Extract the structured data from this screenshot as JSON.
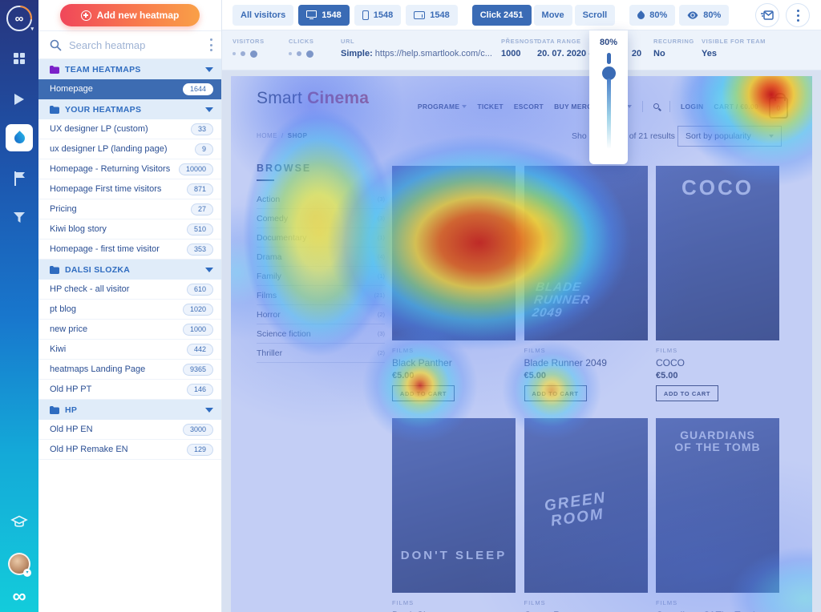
{
  "colors": {
    "accent_blue": "#3a6bb5",
    "selected_row_blue": "#3d6cb2",
    "add_button_gradient": [
      "#f0475a",
      "#f9a047"
    ],
    "rail_gradient": [
      "#27357e",
      "#1877cd",
      "#13ccdb"
    ],
    "site_accent_red": "#c4373f",
    "heat_hot": "#c81212",
    "heat_warm": "#f3c828",
    "heat_cool": "#50c8f0"
  },
  "icons": [
    "infinity-logo-icon",
    "grid-icon",
    "play-icon",
    "flame-icon",
    "flag-icon",
    "funnel-icon",
    "graduation-cap-icon",
    "avatar",
    "plus-circle-icon",
    "search-icon",
    "kebab-menu-icon",
    "folder-icon",
    "chevron-down-icon",
    "desktop-icon",
    "mobile-icon",
    "tablet-icon",
    "drop-icon",
    "eye-icon",
    "send-message-icon",
    "magnifier-icon",
    "cart-bag-icon"
  ],
  "sidebar": {
    "add_button": "Add new heatmap",
    "search_placeholder": "Search heatmap",
    "sections": [
      {
        "label": "TEAM HEATMAPS",
        "icon_color": "#7b22c9",
        "items": [
          {
            "label": "Homepage",
            "count": "1644",
            "selected": true
          }
        ]
      },
      {
        "label": "YOUR HEATMAPS",
        "icon_color": "#2f6cc0",
        "items": [
          {
            "label": "UX designer LP (custom)",
            "count": "33"
          },
          {
            "label": "ux designer LP (landing page)",
            "count": "9"
          },
          {
            "label": "Homepage - Returning Visitors",
            "count": "10000"
          },
          {
            "label": "Homepage First time visitors",
            "count": "871"
          },
          {
            "label": "Pricing",
            "count": "27"
          },
          {
            "label": "Kiwi blog story",
            "count": "510"
          },
          {
            "label": "Homepage - first time visitor",
            "count": "353"
          }
        ]
      },
      {
        "label": "DALSI SLOZKA",
        "icon_color": "#2f6cc0",
        "items": [
          {
            "label": "HP check - all visitor",
            "count": "610"
          },
          {
            "label": "pt blog",
            "count": "1020"
          },
          {
            "label": "new price",
            "count": "1000"
          },
          {
            "label": "Kiwi",
            "count": "442"
          },
          {
            "label": "heatmaps Landing Page",
            "count": "9365"
          },
          {
            "label": "Old HP PT",
            "count": "146"
          }
        ]
      },
      {
        "label": "HP",
        "icon_color": "#2f6cc0",
        "items": [
          {
            "label": "Old HP EN",
            "count": "3000"
          },
          {
            "label": "Old HP Remake EN",
            "count": "129"
          }
        ]
      }
    ]
  },
  "toolbar": {
    "all_visitors_label": "All visitors",
    "devices": [
      {
        "type": "desktop",
        "count": "1548",
        "active": true
      },
      {
        "type": "mobile",
        "count": "1548",
        "active": false
      },
      {
        "type": "tablet",
        "count": "1548",
        "active": false
      }
    ],
    "modes": [
      {
        "label": "Click 2451",
        "active": true
      },
      {
        "label": "Move",
        "active": false
      },
      {
        "label": "Scroll",
        "active": false
      }
    ],
    "opacity_value": "80%",
    "visibility_value": "80%"
  },
  "infobar": {
    "visitors_label": "VISITORS",
    "clicks_label": "CLICKS",
    "url_label": "URL",
    "url_type": "Simple:",
    "url_value": "https://help.smartlook.com/c...",
    "presnost_label": "PŘESNOST",
    "presnost_value": "1000",
    "data_range_label": "DATA RANGE",
    "data_range_start": "20. 07. 2020 -",
    "data_range_end_fragment": "20",
    "recurring_label": "RECURRING",
    "recurring_value": "No",
    "team_label": "VISIBLE FOR TEAM",
    "team_value": "Yes"
  },
  "opacity_popover": {
    "value": "80%"
  },
  "site": {
    "logo_primary": "Smart",
    "logo_accent": "Cinema",
    "nav_items": [
      {
        "label": "PROGRAME",
        "chevron": true
      },
      {
        "label": "TICKET",
        "chevron": false
      },
      {
        "label": "ESCORT",
        "chevron": false
      },
      {
        "label": "BUY MERCHANDISE",
        "chevron": true
      }
    ],
    "login_label": "LOGIN",
    "cart_label": "CART / €0.00",
    "cart_badge": "0",
    "breadcrumb": {
      "home": "HOME",
      "separator": "/",
      "current": "SHOP"
    },
    "results_fragment_left": "Sho",
    "results_fragment_right": "of 21 results",
    "sort_label": "Sort by popularity",
    "browse_title": "BROWSE",
    "categories": [
      {
        "name": "Action",
        "count": "(3)"
      },
      {
        "name": "Comedy",
        "count": "(3)"
      },
      {
        "name": "Documentary",
        "count": "(1)"
      },
      {
        "name": "Drama",
        "count": "(4)"
      },
      {
        "name": "Family",
        "count": "(1)"
      },
      {
        "name": "Films",
        "count": "(21)"
      },
      {
        "name": "Horror",
        "count": "(2)"
      },
      {
        "name": "Science fiction",
        "count": "(3)"
      },
      {
        "name": "Thriller",
        "count": "(2)"
      }
    ],
    "products": [
      {
        "category": "FILMS",
        "title": "Black Panther",
        "price": "€5.00",
        "button": "ADD TO CART",
        "poster_text": "",
        "style": "black-panther"
      },
      {
        "category": "FILMS",
        "title": "Blade Runner 2049",
        "price": "€5.00",
        "button": "ADD TO CART",
        "poster_text": "BLADE RUNNER 2049",
        "style": "blade-runner"
      },
      {
        "category": "FILMS",
        "title": "COCO",
        "price": "€5.00",
        "button": "ADD TO CART",
        "poster_text": "COCO",
        "style": "coco"
      },
      {
        "category": "FILMS",
        "title": "Don't Sleep",
        "price": "",
        "button": "",
        "poster_text": "DON'T SLEEP",
        "style": "dont-sleep"
      },
      {
        "category": "FILMS",
        "title": "Green Room",
        "price": "",
        "button": "",
        "poster_text": "GREEN ROOM",
        "style": "green-room"
      },
      {
        "category": "FILMS",
        "title": "Guardians Of The Tomb",
        "price": "",
        "button": "",
        "poster_text": "GUARDIANS OF THE TOMB",
        "style": "guardians"
      }
    ]
  }
}
